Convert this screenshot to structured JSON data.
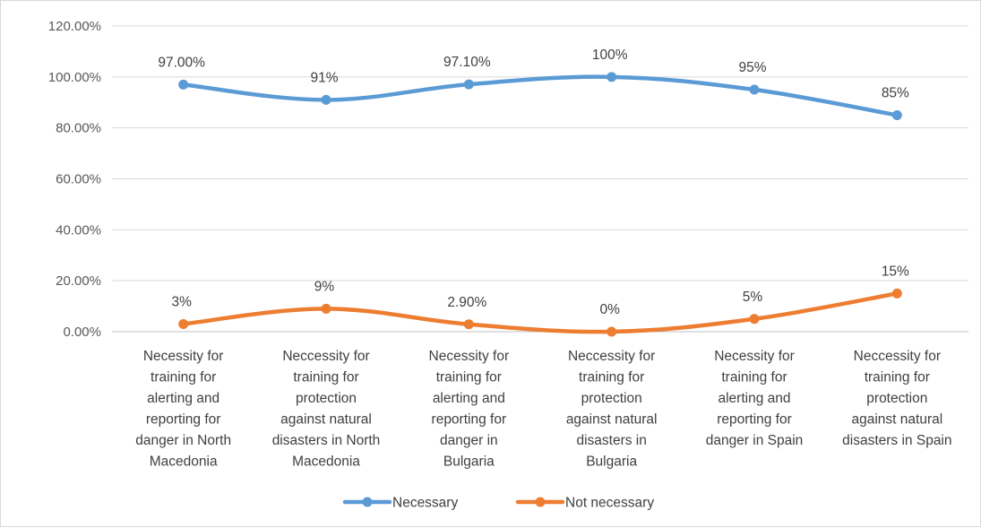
{
  "chart_data": {
    "type": "line",
    "categories": [
      [
        "Necessity for",
        "training for",
        "alerting and",
        "reporting for",
        "danger in North",
        "Macedonia"
      ],
      [
        "Neccessity for",
        "training for",
        "protection",
        "against natural",
        "disasters in North",
        "Macedonia"
      ],
      [
        "Necessity for",
        "training for",
        "alerting and",
        "reporting for",
        "danger in",
        "Bulgaria"
      ],
      [
        "Neccessity for",
        "training for",
        "protection",
        "against natural",
        "disasters in",
        "Bulgaria"
      ],
      [
        "Necessity for",
        "training for",
        "alerting and",
        "reporting for",
        "danger in Spain"
      ],
      [
        "Neccessity for",
        "training for",
        "protection",
        "against natural",
        "disasters in Spain"
      ]
    ],
    "series": [
      {
        "name": "Necessary",
        "color": "#5b9bd5",
        "values": [
          97.0,
          91,
          97.1,
          100,
          95,
          85
        ],
        "labels": [
          "97.00%",
          "91%",
          "97.10%",
          "100%",
          "95%",
          "85%"
        ]
      },
      {
        "name": "Not necessary",
        "color": "#ed7d31",
        "values": [
          3,
          9,
          2.9,
          0,
          5,
          15
        ],
        "labels": [
          "3%",
          "9%",
          "2.90%",
          "0%",
          "5%",
          "15%"
        ]
      }
    ],
    "y_ticks": [
      "0.00%",
      "20.00%",
      "40.00%",
      "60.00%",
      "80.00%",
      "100.00%",
      "120.00%"
    ],
    "ylim": [
      0,
      120
    ],
    "grid": true,
    "legend_position": "bottom"
  }
}
